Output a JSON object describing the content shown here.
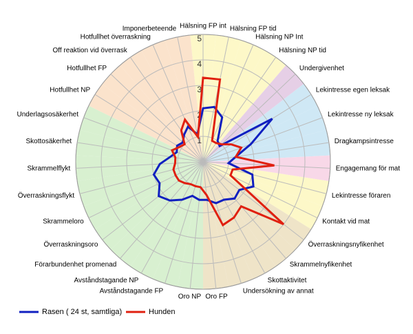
{
  "chart_data": {
    "type": "radar",
    "categories": [
      "Hälsning FP int",
      "Hälsning FP tid",
      "Hälsning NP Int",
      "Hälsning NP tid",
      "Undergivenhet",
      "Lekintresse egen leksak",
      "Lekintresse ny leksak",
      "Dragkampsintresse",
      "Engagemang för mat",
      "Lekintresse föraren",
      "Kontakt vid mat",
      "Överraskningsnyfikenhet",
      "Skrammelnyfikenhet",
      "Skottaktivitet",
      "Undersökning av annat",
      "Oro FP",
      "Oro NP",
      "Avståndstagande FP",
      "Avståndstagande NP",
      "Förarbundenhet promenad",
      "Överraskningsoro",
      "Skrammeloro",
      "Överraskningsflykt",
      "Skrammelflykt",
      "Skottosäkerhet",
      "Underlagsosäkerhet",
      "Hotfullhet NP",
      "Hotfullhet FP",
      "Off reaktion vid överrask",
      "Hotfullhet överraskning",
      "Imponerbeteende"
    ],
    "category_colors": [
      "#fdf8c8",
      "#fdf8c8",
      "#fdf8c8",
      "#fdf8c8",
      "#e6cfe6",
      "#cfe8f5",
      "#cfe8f5",
      "#cfe8f5",
      "#f8d8e8",
      "#fdf8c8",
      "#fdf8c8",
      "#efe4c8",
      "#efe4c8",
      "#efe4c8",
      "#efe4c8",
      "#efe4c8",
      "#d8f0d0",
      "#d8f0d0",
      "#d8f0d0",
      "#d8f0d0",
      "#d8f0d0",
      "#d8f0d0",
      "#d8f0d0",
      "#d8f0d0",
      "#d8f0d0",
      "#d8f0d0",
      "#fbe3cc",
      "#fbe3cc",
      "#fbe3cc",
      "#fbe3cc",
      "#fbe3cc"
    ],
    "series": [
      {
        "name": "Rasen ( 24 st, samtliga)",
        "color": "#1020c0",
        "values": [
          2.1,
          2.2,
          1.9,
          1.0,
          0.9,
          3.2,
          2.0,
          1.3,
          1.0,
          2.0,
          2.2,
          1.8,
          1.9,
          1.7,
          1.7,
          1.5,
          1.5,
          1.4,
          1.7,
          2.0,
          2.2,
          1.9,
          2.0,
          1.7,
          1.3,
          1.1,
          1.2,
          1.1,
          1.3,
          1.5,
          1.1
        ]
      },
      {
        "name": "Hunden",
        "color": "#e02010",
        "values": [
          3.3,
          3.3,
          0.9,
          0.9,
          1.0,
          1.3,
          1.6,
          1.3,
          2.8,
          1.2,
          1.2,
          4.0,
          2.3,
          2.5,
          2.6,
          1.3,
          1.0,
          1.0,
          1.0,
          1.1,
          1.2,
          1.2,
          1.2,
          1.1,
          1.1,
          1.3,
          1.1,
          1.0,
          1.5,
          1.8,
          1.0
        ]
      }
    ],
    "ylim": [
      0,
      5
    ],
    "yticks": [
      1,
      2,
      3,
      4,
      5
    ],
    "grid": true
  }
}
